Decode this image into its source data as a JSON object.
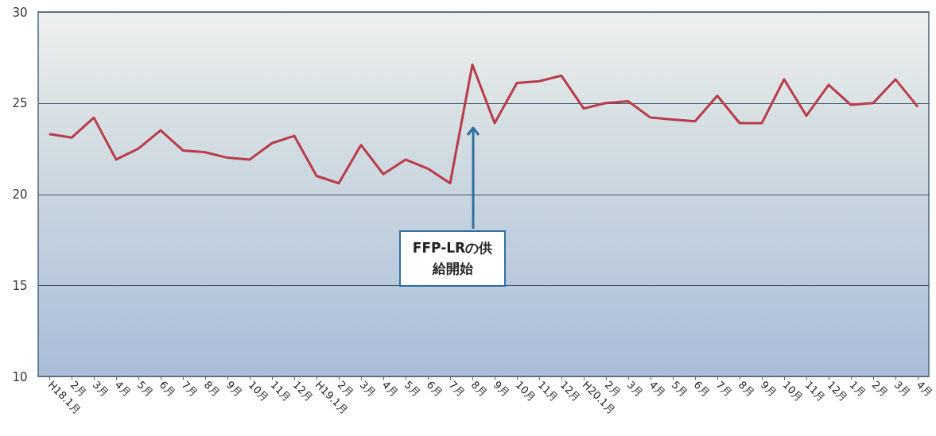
{
  "chart_data": {
    "type": "line",
    "categories": [
      "H18.1月",
      "2月",
      "3月",
      "4月",
      "5月",
      "6月",
      "7月",
      "8月",
      "9月",
      "10月",
      "11月",
      "12月",
      "H19.1月",
      "2月",
      "3月",
      "4月",
      "5月",
      "6月",
      "7月",
      "8月",
      "9月",
      "10月",
      "11月",
      "12月",
      "H20.1月",
      "2月",
      "3月",
      "4月",
      "5月",
      "6月",
      "7月",
      "8月",
      "9月",
      "10月",
      "11月",
      "12月",
      "1月",
      "2月",
      "3月",
      "4月"
    ],
    "series": [
      {
        "color": "#b83c48",
        "values": [
          23.3,
          23.1,
          24.2,
          21.9,
          22.5,
          23.5,
          22.4,
          22.3,
          22.0,
          21.9,
          22.8,
          23.2,
          21.0,
          20.6,
          22.7,
          21.1,
          21.9,
          21.4,
          20.6,
          27.1,
          23.9,
          26.1,
          26.2,
          26.5,
          24.7,
          25.0,
          25.1,
          24.2,
          24.1,
          24.0,
          25.4,
          23.9,
          23.9,
          26.3,
          24.3,
          26.0,
          24.9,
          25.0,
          26.3,
          24.8
        ]
      }
    ],
    "ylim": [
      10,
      30
    ],
    "yticks": [
      10,
      15,
      20,
      25,
      30
    ],
    "grid": "y",
    "marker": "none",
    "line_style": "solid",
    "annotations": [
      "FFP-LRの供給開始"
    ]
  }
}
